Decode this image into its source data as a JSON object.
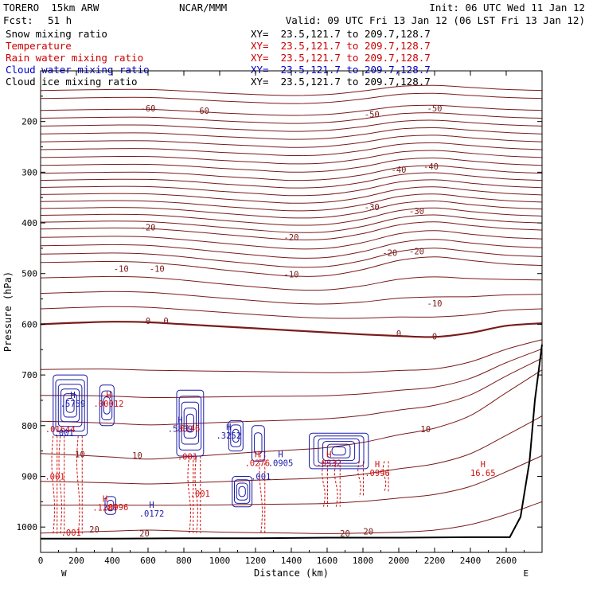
{
  "header": {
    "model": "TORERO  15km ARW",
    "center": "NCAR/MMM",
    "init": "Init: 06 UTC Wed 11 Jan 12",
    "fcst_label": "Fcst:",
    "fcst_value": "51 h",
    "valid": "Valid: 09 UTC Fri 13 Jan 12 (06 LST Fri 13 Jan 12)",
    "fields": [
      {
        "name": "Snow mixing ratio",
        "xy": "XY=  23.5,121.7 to 209.7,128.7",
        "color": "#000000"
      },
      {
        "name": "Temperature",
        "xy": "XY=  23.5,121.7 to 209.7,128.7",
        "color": "#cc0000"
      },
      {
        "name": "Rain water mixing ratio",
        "xy": "XY=  23.5,121.7 to 209.7,128.7",
        "color": "#cc0000"
      },
      {
        "name": "Cloud water mixing ratio",
        "xy": "XY=  23.5,121.7 to 209.7,128.7",
        "color": "#0000cc"
      },
      {
        "name": "Cloud ice mixing ratio",
        "xy": "XY=  23.5,121.7 to 209.7,128.7",
        "color": "#000000"
      }
    ]
  },
  "chart_data": {
    "type": "line",
    "xlabel": "Distance (km)",
    "ylabel": "Pressure (hPa)",
    "xlim": [
      0,
      2800
    ],
    "ylim": [
      1050,
      100
    ],
    "x_ticks": [
      0,
      200,
      400,
      600,
      800,
      1000,
      1200,
      1400,
      1600,
      1800,
      2000,
      2200,
      2400,
      2600
    ],
    "y_ticks": [
      200,
      300,
      400,
      500,
      600,
      700,
      800,
      900,
      1000
    ],
    "x_end_labels": {
      "left": "W",
      "right": "E"
    },
    "colors": {
      "temperature": "#7a1a1a",
      "cloud_water": "#1a1aaa",
      "rain": "#d01010",
      "terrain": "#000000"
    },
    "temperature_contours": [
      {
        "value": -60,
        "x": [
          0,
          200,
          400,
          600,
          800,
          1000,
          1200,
          1400,
          1600,
          1800,
          2000,
          2200,
          2400,
          2600,
          2800
        ],
        "y": [
          178,
          177,
          176,
          176,
          179,
          183,
          186,
          188,
          186,
          179,
          170,
          168,
          172,
          176,
          178
        ]
      },
      {
        "value": -50,
        "x": [
          0,
          200,
          400,
          600,
          800,
          1000,
          1200,
          1400,
          1600,
          1800,
          2000,
          2200,
          2400,
          2600,
          2800
        ],
        "y": [
          240,
          239,
          238,
          238,
          241,
          245,
          248,
          251,
          249,
          241,
          230,
          227,
          232,
          237,
          240
        ]
      },
      {
        "value": -40,
        "x": [
          0,
          200,
          400,
          600,
          800,
          1000,
          1200,
          1400,
          1600,
          1800,
          2000,
          2200,
          2400,
          2600,
          2800
        ],
        "y": [
          302,
          301,
          300,
          300,
          303,
          308,
          312,
          316,
          314,
          305,
          291,
          287,
          293,
          299,
          302
        ]
      },
      {
        "value": -30,
        "x": [
          0,
          200,
          400,
          600,
          800,
          1000,
          1200,
          1400,
          1600,
          1800,
          2000,
          2200,
          2400,
          2600,
          2800
        ],
        "y": [
          358,
          357,
          356,
          357,
          361,
          367,
          372,
          376,
          374,
          364,
          348,
          343,
          350,
          356,
          359
        ]
      },
      {
        "value": -20,
        "x": [
          0,
          200,
          400,
          600,
          800,
          1000,
          1200,
          1400,
          1600,
          1800,
          2000,
          2200,
          2400,
          2600,
          2800
        ],
        "y": [
          412,
          411,
          410,
          411,
          416,
          422,
          428,
          433,
          432,
          421,
          404,
          398,
          405,
          411,
          414
        ]
      },
      {
        "value": -10,
        "x": [
          0,
          200,
          400,
          600,
          800,
          1000,
          1200,
          1400,
          1600,
          1800,
          2000,
          2200,
          2400,
          2600,
          2800
        ],
        "y": [
          478,
          477,
          476,
          478,
          484,
          492,
          499,
          505,
          504,
          492,
          474,
          467,
          474,
          481,
          484
        ]
      },
      {
        "value": 0,
        "x": [
          0,
          200,
          400,
          600,
          800,
          1000,
          1200,
          1400,
          1600,
          1800,
          2000,
          2200,
          2400,
          2600,
          2800
        ],
        "y": [
          600,
          597,
          595,
          596,
          600,
          604,
          608,
          612,
          616,
          620,
          623,
          625,
          617,
          603,
          598
        ]
      },
      {
        "value": 10,
        "x": [
          0,
          200,
          400,
          600,
          800,
          1000,
          1200,
          1400,
          1600,
          1800,
          2000,
          2200,
          2400,
          2600,
          2800
        ],
        "y": [
          855,
          858,
          862,
          866,
          862,
          857,
          852,
          848,
          843,
          833,
          818,
          805,
          780,
          735,
          690
        ]
      },
      {
        "value": 20,
        "x": [
          0,
          200,
          400,
          600,
          800,
          1000,
          1200,
          1400,
          1600,
          1800,
          2000,
          2200,
          2400,
          2600,
          2800
        ],
        "y": [
          1012,
          1010,
          1008,
          1006,
          1008,
          1010,
          1011,
          1012,
          1013,
          1012,
          1010,
          1006,
          995,
          975,
          950
        ]
      }
    ],
    "temperature_labels": [
      {
        "text": "-60",
        "x": 600,
        "y": 175
      },
      {
        "text": "-60",
        "x": 900,
        "y": 180
      },
      {
        "text": "-50",
        "x": 1850,
        "y": 187
      },
      {
        "text": "-50",
        "x": 2200,
        "y": 175
      },
      {
        "text": "-40",
        "x": 2000,
        "y": 296
      },
      {
        "text": "-40",
        "x": 2180,
        "y": 290
      },
      {
        "text": "-30",
        "x": 1850,
        "y": 370
      },
      {
        "text": "-30",
        "x": 2100,
        "y": 378
      },
      {
        "text": "-20",
        "x": 600,
        "y": 410
      },
      {
        "text": "-20",
        "x": 1400,
        "y": 430
      },
      {
        "text": "-20",
        "x": 1950,
        "y": 460
      },
      {
        "text": "-20",
        "x": 2100,
        "y": 457
      },
      {
        "text": "-10",
        "x": 450,
        "y": 492
      },
      {
        "text": "-10",
        "x": 650,
        "y": 492
      },
      {
        "text": "-10",
        "x": 1400,
        "y": 503
      },
      {
        "text": "-10",
        "x": 2200,
        "y": 560
      },
      {
        "text": "0",
        "x": 600,
        "y": 595
      },
      {
        "text": "0",
        "x": 700,
        "y": 595
      },
      {
        "text": "0",
        "x": 2000,
        "y": 620
      },
      {
        "text": "0",
        "x": 2200,
        "y": 625
      },
      {
        "text": "10",
        "x": 540,
        "y": 860
      },
      {
        "text": "10",
        "x": 2150,
        "y": 808
      },
      {
        "text": "10",
        "x": 220,
        "y": 858
      },
      {
        "text": "20",
        "x": 300,
        "y": 1006
      },
      {
        "text": "20",
        "x": 580,
        "y": 1014
      },
      {
        "text": "20",
        "x": 1700,
        "y": 1014
      },
      {
        "text": "20",
        "x": 1830,
        "y": 1010
      }
    ],
    "max_markers": [
      {
        "label": "H",
        "value": ".5759",
        "x": 180,
        "y": 745,
        "color": "#1a1aaa"
      },
      {
        "label": "H",
        "value": ".00012",
        "x": 380,
        "y": 745,
        "color": "#d01010"
      },
      {
        "label": "H",
        "value": ".5809",
        "x": 780,
        "y": 795,
        "color": "#1a1aaa"
      },
      {
        "label": "H",
        "value": ".3252",
        "x": 1050,
        "y": 808,
        "color": "#1a1aaa"
      },
      {
        "label": "H",
        "value": ".0905",
        "x": 1340,
        "y": 862,
        "color": "#1a1aaa"
      },
      {
        "label": "H",
        "value": ".0276",
        "x": 1210,
        "y": 862,
        "color": "#d01010"
      },
      {
        "label": "H",
        "value": ".0332",
        "x": 1610,
        "y": 862,
        "color": "#d01010"
      },
      {
        "label": "H",
        "value": "16.65",
        "x": 2470,
        "y": 882,
        "color": "#d01010"
      },
      {
        "label": "H",
        "value": ".1287",
        "x": 360,
        "y": 950,
        "color": "#d01010"
      },
      {
        "label": "H",
        "value": ".0172",
        "x": 620,
        "y": 962,
        "color": "#1a1aaa"
      },
      {
        "label": "H",
        "value": ".0996",
        "x": 1880,
        "y": 882,
        "color": "#d01010"
      }
    ],
    "small_labels": [
      {
        "text": ".01644",
        "x": 110,
        "y": 808,
        "color": "#d01010"
      },
      {
        "text": ".001",
        "x": 130,
        "y": 815,
        "color": "#1a1aaa"
      },
      {
        "text": ".0146",
        "x": 820,
        "y": 807,
        "color": "#d01010"
      },
      {
        "text": ".001",
        "x": 820,
        "y": 862,
        "color": "#d01010"
      },
      {
        "text": ".001",
        "x": 80,
        "y": 902,
        "color": "#d01010"
      },
      {
        "text": ".001",
        "x": 890,
        "y": 935,
        "color": "#d01010"
      },
      {
        "text": ".001",
        "x": 1230,
        "y": 902,
        "color": "#1a1aaa"
      },
      {
        "text": ".0996",
        "x": 420,
        "y": 962,
        "color": "#d01010"
      },
      {
        "text": ".001",
        "x": 170,
        "y": 1012,
        "color": "#d01010"
      }
    ],
    "cloud_water_cells": [
      {
        "x0": 70,
        "x1": 260,
        "y0": 700,
        "y1": 820
      },
      {
        "x0": 330,
        "x1": 410,
        "y0": 720,
        "y1": 800
      },
      {
        "x0": 760,
        "x1": 910,
        "y0": 730,
        "y1": 860
      },
      {
        "x0": 1050,
        "x1": 1130,
        "y0": 790,
        "y1": 850
      },
      {
        "x0": 1180,
        "x1": 1250,
        "y0": 800,
        "y1": 870
      },
      {
        "x0": 1500,
        "x1": 1830,
        "y0": 815,
        "y1": 885
      },
      {
        "x0": 360,
        "x1": 420,
        "y0": 940,
        "y1": 975
      },
      {
        "x0": 1070,
        "x1": 1180,
        "y0": 900,
        "y1": 960
      }
    ],
    "rain_columns": [
      {
        "x": 70,
        "y0": 820,
        "y1": 1015
      },
      {
        "x": 110,
        "y0": 820,
        "y1": 1015
      },
      {
        "x": 210,
        "y0": 820,
        "y1": 1015
      },
      {
        "x": 830,
        "y0": 860,
        "y1": 1012
      },
      {
        "x": 870,
        "y0": 860,
        "y1": 1012
      },
      {
        "x": 1230,
        "y0": 850,
        "y1": 1012
      },
      {
        "x": 1580,
        "y0": 870,
        "y1": 960
      },
      {
        "x": 1650,
        "y0": 870,
        "y1": 960
      },
      {
        "x": 1780,
        "y0": 870,
        "y1": 940
      },
      {
        "x": 1920,
        "y0": 870,
        "y1": 930
      }
    ],
    "terrain": {
      "x": [
        0,
        400,
        800,
        1200,
        1600,
        2000,
        2400,
        2620,
        2680,
        2730,
        2760,
        2800
      ],
      "y": [
        1023,
        1023,
        1022,
        1022,
        1021,
        1021,
        1020,
        1020,
        980,
        870,
        750,
        640
      ]
    }
  }
}
